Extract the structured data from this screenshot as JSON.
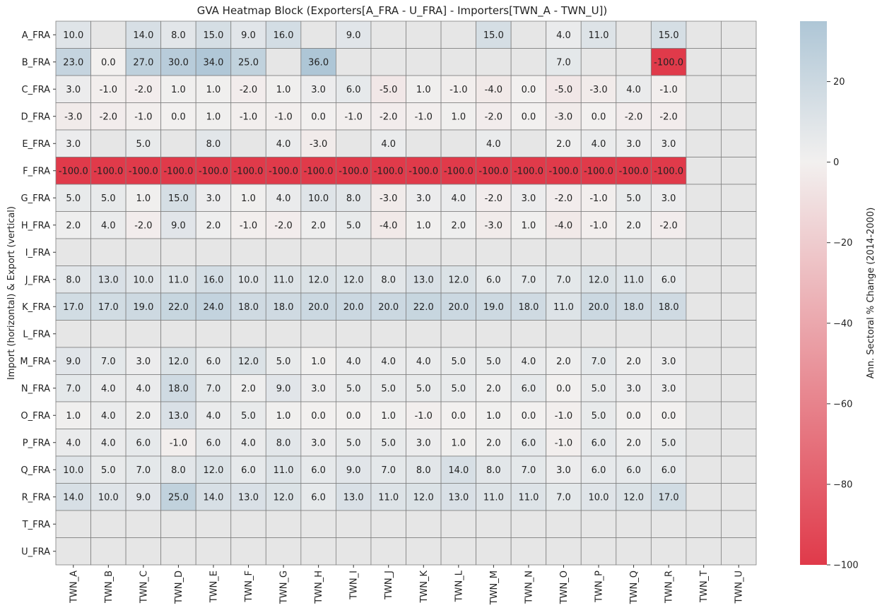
{
  "chart_data": {
    "type": "heatmap",
    "title": "GVA Heatmap Block (Exporters[A_FRA - U_FRA] - Importers[TWN_A - TWN_U])",
    "ylabel": "Import (horizontal) & Export (vertical)",
    "xlabel": "",
    "colorbar_label": "Ann. Sectoral % Change (2014-2000)",
    "colorbar_ticks": [
      20,
      0,
      -20,
      -40,
      -60,
      -80,
      -100
    ],
    "colorbar_tick_labels": [
      "20",
      "0",
      "−20",
      "−40",
      "−60",
      "−80",
      "−100"
    ],
    "vmin": -100,
    "vmax": 35,
    "colors": {
      "low": "#e03a4a",
      "mid": "#f2f0ef",
      "high": "#aec6d6",
      "missing": "#e6e6e6",
      "grid": "#808080"
    },
    "columns": [
      "TWN_A",
      "TWN_B",
      "TWN_C",
      "TWN_D",
      "TWN_E",
      "TWN_F",
      "TWN_G",
      "TWN_H",
      "TWN_I",
      "TWN_J",
      "TWN_K",
      "TWN_L",
      "TWN_M",
      "TWN_N",
      "TWN_O",
      "TWN_P",
      "TWN_Q",
      "TWN_R",
      "TWN_T",
      "TWN_U"
    ],
    "rows": [
      "A_FRA",
      "B_FRA",
      "C_FRA",
      "D_FRA",
      "E_FRA",
      "F_FRA",
      "G_FRA",
      "H_FRA",
      "I_FRA",
      "J_FRA",
      "K_FRA",
      "L_FRA",
      "M_FRA",
      "N_FRA",
      "O_FRA",
      "P_FRA",
      "Q_FRA",
      "R_FRA",
      "T_FRA",
      "U_FRA"
    ],
    "values": [
      [
        10,
        null,
        14,
        8,
        15,
        9,
        16,
        null,
        9,
        null,
        null,
        null,
        15,
        null,
        4,
        11,
        null,
        15,
        null,
        null
      ],
      [
        23,
        0,
        27,
        30,
        34,
        25,
        null,
        36,
        null,
        null,
        null,
        null,
        null,
        null,
        7,
        null,
        null,
        -100,
        null,
        null
      ],
      [
        3,
        -1,
        -2,
        1,
        1,
        -2,
        1,
        3,
        6,
        -5,
        1,
        -1,
        -4,
        0,
        -5,
        -3,
        4,
        -1,
        null,
        null
      ],
      [
        -3,
        -2,
        -1,
        0,
        1,
        -1,
        -1,
        0,
        -1,
        -2,
        -1,
        1,
        -2,
        0,
        -3,
        0,
        -2,
        -2,
        null,
        null
      ],
      [
        3,
        null,
        5,
        null,
        8,
        null,
        4,
        -3,
        null,
        4,
        null,
        null,
        4,
        null,
        2,
        4,
        3,
        3,
        null,
        null
      ],
      [
        -100,
        -100,
        -100,
        -100,
        -100,
        -100,
        -100,
        -100,
        -100,
        -100,
        -100,
        -100,
        -100,
        -100,
        -100,
        -100,
        -100,
        -100,
        null,
        null
      ],
      [
        5,
        5,
        1,
        15,
        3,
        1,
        4,
        10,
        8,
        -3,
        3,
        4,
        -2,
        3,
        -2,
        -1,
        5,
        3,
        null,
        null
      ],
      [
        2,
        4,
        -2,
        9,
        2,
        -1,
        -2,
        2,
        5,
        -4,
        1,
        2,
        -3,
        1,
        -4,
        -1,
        2,
        -2,
        null,
        null
      ],
      [
        null,
        null,
        null,
        null,
        null,
        null,
        null,
        null,
        null,
        null,
        null,
        null,
        null,
        null,
        null,
        null,
        null,
        null,
        null,
        null
      ],
      [
        8,
        13,
        10,
        11,
        16,
        10,
        11,
        12,
        12,
        8,
        13,
        12,
        6,
        7,
        7,
        12,
        11,
        6,
        null,
        null
      ],
      [
        17,
        17,
        19,
        22,
        24,
        18,
        18,
        20,
        20,
        20,
        22,
        20,
        19,
        18,
        11,
        20,
        18,
        18,
        null,
        null
      ],
      [
        null,
        null,
        null,
        null,
        null,
        null,
        null,
        null,
        null,
        null,
        null,
        null,
        null,
        null,
        null,
        null,
        null,
        null,
        null,
        null
      ],
      [
        9,
        7,
        3,
        12,
        6,
        12,
        5,
        1,
        4,
        4,
        4,
        5,
        5,
        4,
        2,
        7,
        2,
        3,
        null,
        null
      ],
      [
        7,
        4,
        4,
        18,
        7,
        2,
        9,
        3,
        5,
        5,
        5,
        5,
        2,
        6,
        0,
        5,
        3,
        3,
        null,
        null
      ],
      [
        1,
        4,
        2,
        13,
        4,
        5,
        1,
        0,
        0,
        1,
        -1,
        0,
        1,
        0,
        -1,
        5,
        0,
        0,
        null,
        null
      ],
      [
        4,
        4,
        6,
        -1,
        6,
        4,
        8,
        3,
        5,
        5,
        3,
        1,
        2,
        6,
        -1,
        6,
        2,
        5,
        null,
        null
      ],
      [
        10,
        5,
        7,
        8,
        12,
        6,
        11,
        6,
        9,
        7,
        8,
        14,
        8,
        7,
        3,
        6,
        6,
        6,
        null,
        null
      ],
      [
        14,
        10,
        9,
        25,
        14,
        13,
        12,
        6,
        13,
        11,
        12,
        13,
        11,
        11,
        7,
        10,
        12,
        17,
        null,
        null
      ],
      [
        null,
        null,
        null,
        null,
        null,
        null,
        null,
        null,
        null,
        null,
        null,
        null,
        null,
        null,
        null,
        null,
        null,
        null,
        null,
        null
      ],
      [
        null,
        null,
        null,
        null,
        null,
        null,
        null,
        null,
        null,
        null,
        null,
        null,
        null,
        null,
        null,
        null,
        null,
        null,
        null,
        null
      ]
    ]
  }
}
